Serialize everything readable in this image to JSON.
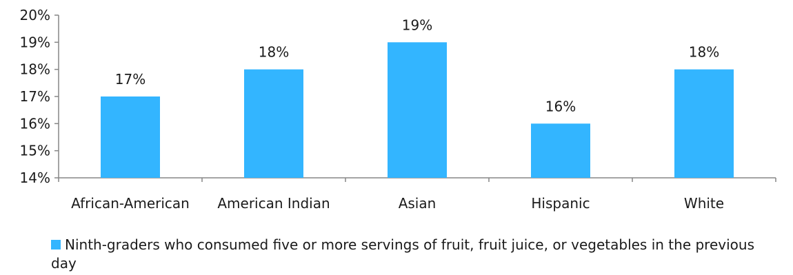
{
  "chart_data": {
    "type": "bar",
    "categories": [
      "African-American",
      "American Indian",
      "Asian",
      "Hispanic",
      "White"
    ],
    "series": [
      {
        "name": "Ninth-graders who consumed five or more servings of fruit, fruit juice, or vegetables in the previous day",
        "values": [
          17,
          18,
          19,
          16,
          18
        ],
        "data_labels": [
          "17%",
          "18%",
          "19%",
          "16%",
          "18%"
        ]
      }
    ],
    "ylim": [
      14,
      20
    ],
    "yticks": [
      14,
      15,
      16,
      17,
      18,
      19,
      20
    ],
    "ytick_labels": [
      "14%",
      "15%",
      "16%",
      "17%",
      "18%",
      "19%",
      "20%"
    ],
    "title": "",
    "xlabel": "",
    "ylabel": "",
    "grid": false,
    "legend_position": "bottom-left",
    "bar_color": "#33b5ff",
    "axis_color": "#868686"
  }
}
